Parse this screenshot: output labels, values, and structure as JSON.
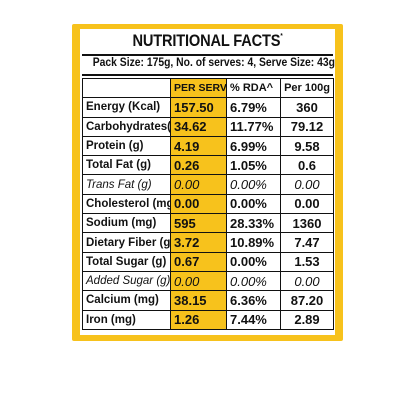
{
  "label": {
    "title": "NUTRITIONAL FACTS",
    "title_mark": "*",
    "pack_info": "Pack Size: 175g, No. of serves: 4, Serve Size: 43g",
    "headers": {
      "nutrient": "",
      "per_serve": "PER SERVE*",
      "rda": "% RDA^",
      "per_100g": "Per 100g"
    },
    "accent_color": "#f7c21c",
    "rows": [
      {
        "name": "Energy (Kcal)",
        "per_serve": "157.50",
        "rda": "6.79%",
        "per_100g": "360"
      },
      {
        "name": "Carbohydrates(g)",
        "per_serve": "34.62",
        "rda": "11.77%",
        "per_100g": "79.12"
      },
      {
        "name": "Protein (g)",
        "per_serve": "4.19",
        "rda": "6.99%",
        "per_100g": "9.58"
      },
      {
        "name": "Total Fat (g)",
        "per_serve": "0.26",
        "rda": "1.05%",
        "per_100g": "0.6"
      },
      {
        "name": "Trans Fat (g)",
        "per_serve": "0.00",
        "rda": "0.00%",
        "per_100g": "0.00"
      },
      {
        "name": "Cholesterol (mg)",
        "per_serve": "0.00",
        "rda": "0.00%",
        "per_100g": "0.00"
      },
      {
        "name": "Sodium (mg)",
        "per_serve": "595",
        "rda": "28.33%",
        "per_100g": "1360"
      },
      {
        "name": "Dietary Fiber (g)",
        "per_serve": "3.72",
        "rda": "10.89%",
        "per_100g": "7.47"
      },
      {
        "name": "Total Sugar (g)",
        "per_serve": "0.67",
        "rda": "0.00%",
        "per_100g": "1.53"
      },
      {
        "name": "Added Sugar (g)",
        "per_serve": "0.00",
        "rda": "0.00%",
        "per_100g": "0.00"
      },
      {
        "name": "Calcium (mg)",
        "per_serve": "38.15",
        "rda": "6.36%",
        "per_100g": "87.20"
      },
      {
        "name": "Iron (mg)",
        "per_serve": "1.26",
        "rda": "7.44%",
        "per_100g": "2.89"
      }
    ]
  }
}
